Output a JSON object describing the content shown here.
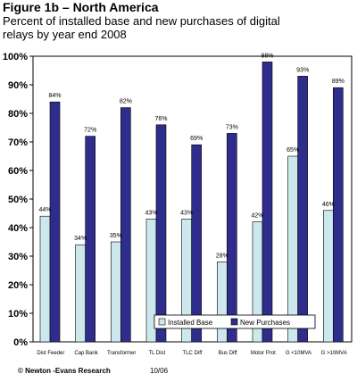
{
  "figure": {
    "title": "Figure 1b  – North America",
    "subtitle": "Percent of installed base and new purchases of digital relays by year end 2008"
  },
  "footer": {
    "credit": "© Newton -Evans Research",
    "date": "10/06"
  },
  "chart_data": {
    "type": "bar",
    "categories": [
      "Dist Feeder",
      "Cap Bank",
      "Transformer",
      "TL Dist",
      "TLC Diff",
      "Bus Diff",
      "Motor Prot",
      "G <10MVA",
      "G >10MVA"
    ],
    "series": [
      {
        "name": "Installed Base",
        "values": [
          44,
          34,
          35,
          43,
          43,
          28,
          42,
          65,
          46
        ],
        "labels": [
          "44%",
          "34%",
          "35%",
          "43%",
          "43%",
          "28%",
          "42%",
          "65%",
          "46%"
        ],
        "color": "#cce8ec"
      },
      {
        "name": "New Purchases",
        "values": [
          84,
          72,
          82,
          76,
          69,
          73,
          98,
          93,
          89
        ],
        "labels": [
          "84%",
          "72%",
          "82%",
          "76%",
          "69%",
          "73%",
          "98%",
          "93%",
          "89%"
        ],
        "color": "#2e2d8c"
      }
    ],
    "yticks": [
      "0%",
      "10%",
      "20%",
      "30%",
      "40%",
      "50%",
      "60%",
      "70%",
      "80%",
      "90%",
      "100%"
    ],
    "ylim": [
      0,
      100
    ],
    "legend_position": "bottom-right",
    "grid": false,
    "colors": {
      "plot_background": "#ffffff",
      "bar_outline": "#000000"
    }
  }
}
